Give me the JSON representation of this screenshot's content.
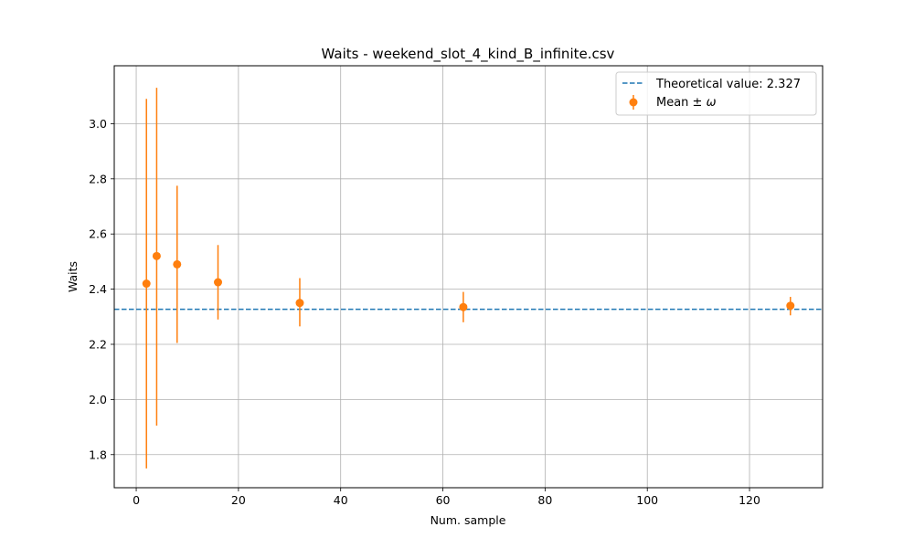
{
  "chart_data": {
    "type": "scatter",
    "title": "Waits - weekend_slot_4_kind_B_infinite.csv",
    "xlabel": "Num. sample",
    "ylabel": "Waits",
    "xlim": [
      -4.3,
      134.3
    ],
    "ylim": [
      1.68,
      3.21
    ],
    "xticks": [
      0,
      20,
      40,
      60,
      80,
      100,
      120
    ],
    "yticks": [
      1.8,
      2.0,
      2.2,
      2.4,
      2.6,
      2.8,
      3.0
    ],
    "xtick_labels": [
      "0",
      "20",
      "40",
      "60",
      "80",
      "100",
      "120"
    ],
    "ytick_labels": [
      "1.8",
      "2.0",
      "2.2",
      "2.4",
      "2.6",
      "2.8",
      "3.0"
    ],
    "grid": true,
    "legend_position": "top-right",
    "theoretical": {
      "value": 2.327,
      "label": "Theoretical value: 2.327",
      "color": "#1f77b4"
    },
    "series": [
      {
        "name": "Mean ± ω",
        "legend_prefix": "Mean ± ",
        "legend_symbol": "ω",
        "color": "#ff7f0e",
        "points": [
          {
            "x": 2,
            "y": 2.42,
            "err_low": 1.75,
            "err_high": 3.09
          },
          {
            "x": 4,
            "y": 2.52,
            "err_low": 1.905,
            "err_high": 3.13
          },
          {
            "x": 8,
            "y": 2.49,
            "err_low": 2.205,
            "err_high": 2.775
          },
          {
            "x": 16,
            "y": 2.425,
            "err_low": 2.29,
            "err_high": 2.56
          },
          {
            "x": 32,
            "y": 2.35,
            "err_low": 2.265,
            "err_high": 2.44
          },
          {
            "x": 64,
            "y": 2.335,
            "err_low": 2.28,
            "err_high": 2.39
          },
          {
            "x": 128,
            "y": 2.34,
            "err_low": 2.305,
            "err_high": 2.372
          }
        ]
      }
    ]
  }
}
